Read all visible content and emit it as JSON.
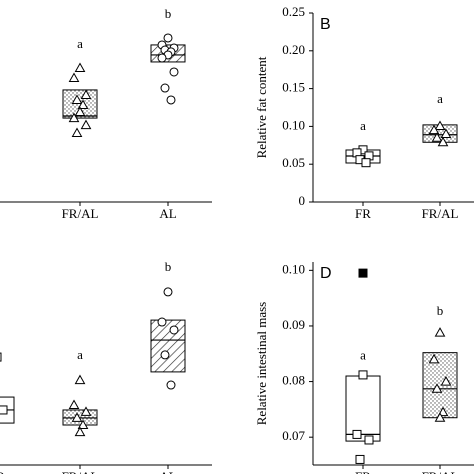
{
  "chart_data": [
    {
      "type": "box",
      "ylim": [
        0,
        1
      ],
      "categories": [
        "FR/AL",
        "AL"
      ],
      "fills": [
        "dots",
        "hatch"
      ],
      "markers": [
        "triangle",
        "circle"
      ],
      "boxes": [
        {
          "q1": 0.444,
          "median": 0.455,
          "q3": 0.593
        },
        {
          "q1": 0.741,
          "median": 0.778,
          "q3": 0.831
        }
      ],
      "points": [
        [
          0.709,
          0.656,
          0.566,
          0.54,
          0.513,
          0.476,
          0.444,
          0.407,
          0.365
        ],
        [
          0.868,
          0.831,
          0.815,
          0.804,
          0.794,
          0.778,
          0.762,
          0.688,
          0.603,
          0.54
        ]
      ],
      "letters": [
        "a",
        "b"
      ],
      "letter_y": [
        0.831,
        0.989
      ]
    },
    {
      "type": "box",
      "panel_label": "B",
      "ylabel": "Relative fat content",
      "ylim": [
        0,
        0.25
      ],
      "yticks": [
        0,
        0.05,
        {
          "value": 0.1,
          "label": "0.10"
        },
        0.15,
        {
          "value": 0.2,
          "label": "0.20"
        },
        0.25
      ],
      "categories": [
        "FR",
        "FR/AL"
      ],
      "fills": [
        "white",
        "dots"
      ],
      "markers": [
        "square",
        "triangle"
      ],
      "boxes": [
        {
          "q1": 0.0516,
          "median": 0.0608,
          "q3": 0.0688
        },
        {
          "q1": 0.079,
          "median": 0.089,
          "q3": 0.102
        }
      ],
      "points": [
        [
          0.069,
          0.065,
          0.061,
          0.056,
          0.052
        ],
        [
          0.1005,
          0.095,
          0.09,
          0.085,
          0.079
        ]
      ],
      "letters": [
        "a",
        "a"
      ],
      "letter_y": [
        0.099,
        0.135
      ]
    },
    {
      "type": "box",
      "ylim": [
        0,
        1
      ],
      "categories": [
        "FR",
        "FR/AL",
        "AL"
      ],
      "fills": [
        "white",
        "dots",
        "hatch"
      ],
      "markers": [
        "square",
        "triangle",
        "circle"
      ],
      "boxes": [
        {
          "q1": 0.195,
          "median": 0.256,
          "q3": 0.316
        },
        {
          "q1": 0.186,
          "median": 0.219,
          "q3": 0.256
        },
        {
          "q1": 0.433,
          "median": 0.581,
          "q3": 0.674
        }
      ],
      "points": [
        [
          0.502,
          0.302,
          0.256,
          0.2
        ],
        [
          0.395,
          0.279,
          0.247,
          0.219,
          0.186,
          0.153
        ],
        [
          0.805,
          0.665,
          0.628,
          0.512,
          0.372
        ]
      ],
      "letters": [
        "a",
        "a",
        "b"
      ],
      "letter_y": [
        0.605,
        0.507,
        0.916
      ]
    },
    {
      "type": "box",
      "panel_label": "D",
      "ylabel": "Relative intestinal mass",
      "ylim": [
        0.065,
        0.1015
      ],
      "yticks": [
        0.07,
        0.08,
        0.09,
        {
          "value": 0.1,
          "label": "0.10"
        }
      ],
      "categories": [
        "FR",
        "FR/AL"
      ],
      "fills": [
        "white",
        "dots"
      ],
      "markers": [
        "square",
        "triangle"
      ],
      "boxes": [
        {
          "q1": 0.0693,
          "median": 0.0705,
          "q3": 0.081
        },
        {
          "q1": 0.0735,
          "median": 0.0787,
          "q3": 0.0852
        }
      ],
      "points": [
        [
          0.0812,
          0.0705,
          0.0695,
          0.066
        ],
        [
          0.0888,
          0.084,
          0.08,
          0.0787,
          0.0745,
          0.0735
        ]
      ],
      "outliers": [
        [
          0.0995
        ],
        []
      ],
      "letters": [
        "a",
        "b"
      ],
      "letter_y": [
        0.0845,
        0.0925
      ]
    }
  ]
}
